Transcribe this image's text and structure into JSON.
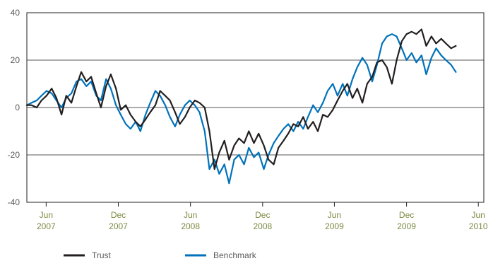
{
  "chart_data": {
    "type": "line",
    "title": "",
    "xlabel": "",
    "ylabel": "",
    "x_range": [
      "2007-04-13",
      "2010-06-15"
    ],
    "ylim": [
      -40,
      40
    ],
    "y_ticks": [
      40,
      20,
      0,
      -20,
      -40
    ],
    "x_ticks": [
      {
        "date": "2007-06-01",
        "month": "Jun",
        "year": "2007"
      },
      {
        "date": "2007-12-01",
        "month": "Dec",
        "year": "2007"
      },
      {
        "date": "2008-06-01",
        "month": "Jun",
        "year": "2008"
      },
      {
        "date": "2008-12-01",
        "month": "Dec",
        "year": "2008"
      },
      {
        "date": "2009-06-01",
        "month": "Jun",
        "year": "2009"
      },
      {
        "date": "2009-12-01",
        "month": "Dec",
        "year": "2009"
      },
      {
        "date": "2010-06-01",
        "month": "Jun",
        "year": "2010"
      }
    ],
    "grid": "horizontal",
    "legend_position": "bottom-left",
    "series": [
      {
        "name": "Trust",
        "color": "#231f20",
        "points": [
          [
            "2007-04-13",
            1
          ],
          [
            "2007-04-25",
            1
          ],
          [
            "2007-05-08",
            0
          ],
          [
            "2007-05-20",
            3
          ],
          [
            "2007-06-02",
            5
          ],
          [
            "2007-06-15",
            8
          ],
          [
            "2007-06-27",
            4
          ],
          [
            "2007-07-10",
            -3
          ],
          [
            "2007-07-22",
            5
          ],
          [
            "2007-08-04",
            2
          ],
          [
            "2007-08-17",
            9
          ],
          [
            "2007-08-29",
            15
          ],
          [
            "2007-09-11",
            11
          ],
          [
            "2007-09-23",
            13
          ],
          [
            "2007-10-06",
            6
          ],
          [
            "2007-10-18",
            0
          ],
          [
            "2007-10-31",
            9
          ],
          [
            "2007-11-12",
            14
          ],
          [
            "2007-11-25",
            8
          ],
          [
            "2007-12-07",
            -1
          ],
          [
            "2007-12-20",
            1
          ],
          [
            "2008-01-01",
            -3
          ],
          [
            "2008-01-14",
            -6
          ],
          [
            "2008-01-26",
            -8
          ],
          [
            "2008-02-08",
            -5
          ],
          [
            "2008-02-20",
            -2
          ],
          [
            "2008-03-04",
            1
          ],
          [
            "2008-03-16",
            7
          ],
          [
            "2008-03-29",
            5
          ],
          [
            "2008-04-10",
            3
          ],
          [
            "2008-04-23",
            -2
          ],
          [
            "2008-05-05",
            -7
          ],
          [
            "2008-05-18",
            -4
          ],
          [
            "2008-05-30",
            0
          ],
          [
            "2008-06-12",
            3
          ],
          [
            "2008-06-24",
            2
          ],
          [
            "2008-07-07",
            0
          ],
          [
            "2008-07-19",
            -10
          ],
          [
            "2008-08-01",
            -26
          ],
          [
            "2008-08-13",
            -19
          ],
          [
            "2008-08-26",
            -14
          ],
          [
            "2008-09-07",
            -22
          ],
          [
            "2008-09-20",
            -16
          ],
          [
            "2008-10-02",
            -13
          ],
          [
            "2008-10-15",
            -15
          ],
          [
            "2008-10-27",
            -10
          ],
          [
            "2008-11-09",
            -15
          ],
          [
            "2008-11-21",
            -11
          ],
          [
            "2008-12-04",
            -16
          ],
          [
            "2008-12-16",
            -22
          ],
          [
            "2008-12-29",
            -24
          ],
          [
            "2009-01-10",
            -17
          ],
          [
            "2009-01-23",
            -14
          ],
          [
            "2009-02-04",
            -11
          ],
          [
            "2009-02-17",
            -7
          ],
          [
            "2009-03-01",
            -8
          ],
          [
            "2009-03-14",
            -4
          ],
          [
            "2009-03-26",
            -9
          ],
          [
            "2009-04-08",
            -6
          ],
          [
            "2009-04-20",
            -10
          ],
          [
            "2009-05-03",
            -3
          ],
          [
            "2009-05-15",
            -4
          ],
          [
            "2009-05-28",
            -1
          ],
          [
            "2009-06-09",
            3
          ],
          [
            "2009-06-22",
            7
          ],
          [
            "2009-07-04",
            10
          ],
          [
            "2009-07-17",
            4
          ],
          [
            "2009-07-29",
            8
          ],
          [
            "2009-08-11",
            2
          ],
          [
            "2009-08-23",
            10
          ],
          [
            "2009-09-05",
            13
          ],
          [
            "2009-09-17",
            19
          ],
          [
            "2009-09-30",
            20
          ],
          [
            "2009-10-12",
            17
          ],
          [
            "2009-10-25",
            10
          ],
          [
            "2009-11-06",
            20
          ],
          [
            "2009-11-19",
            28
          ],
          [
            "2009-12-01",
            31
          ],
          [
            "2009-12-14",
            32
          ],
          [
            "2009-12-26",
            31
          ],
          [
            "2010-01-08",
            33
          ],
          [
            "2010-01-20",
            26
          ],
          [
            "2010-02-02",
            30
          ],
          [
            "2010-02-14",
            27
          ],
          [
            "2010-02-27",
            29
          ],
          [
            "2010-03-11",
            27
          ],
          [
            "2010-03-24",
            25
          ],
          [
            "2010-04-05",
            26
          ]
        ]
      },
      {
        "name": "Benchmark",
        "color": "#0072bc",
        "points": [
          [
            "2007-04-13",
            1
          ],
          [
            "2007-04-25",
            2
          ],
          [
            "2007-05-08",
            3
          ],
          [
            "2007-05-20",
            5
          ],
          [
            "2007-06-02",
            7
          ],
          [
            "2007-06-15",
            6
          ],
          [
            "2007-06-27",
            3
          ],
          [
            "2007-07-10",
            0
          ],
          [
            "2007-07-22",
            4
          ],
          [
            "2007-08-04",
            6
          ],
          [
            "2007-08-17",
            11
          ],
          [
            "2007-08-29",
            12
          ],
          [
            "2007-09-11",
            9
          ],
          [
            "2007-09-23",
            11
          ],
          [
            "2007-10-06",
            5
          ],
          [
            "2007-10-18",
            3
          ],
          [
            "2007-10-31",
            12
          ],
          [
            "2007-11-12",
            8
          ],
          [
            "2007-11-25",
            1
          ],
          [
            "2007-12-07",
            -3
          ],
          [
            "2007-12-20",
            -7
          ],
          [
            "2008-01-01",
            -9
          ],
          [
            "2008-01-14",
            -6
          ],
          [
            "2008-01-26",
            -10
          ],
          [
            "2008-02-08",
            -3
          ],
          [
            "2008-02-20",
            2
          ],
          [
            "2008-03-04",
            7
          ],
          [
            "2008-03-16",
            5
          ],
          [
            "2008-03-29",
            1
          ],
          [
            "2008-04-10",
            -4
          ],
          [
            "2008-04-23",
            -8
          ],
          [
            "2008-05-05",
            -3
          ],
          [
            "2008-05-18",
            1
          ],
          [
            "2008-05-30",
            3
          ],
          [
            "2008-06-12",
            1
          ],
          [
            "2008-06-24",
            -2
          ],
          [
            "2008-07-07",
            -10
          ],
          [
            "2008-07-19",
            -26
          ],
          [
            "2008-08-01",
            -22
          ],
          [
            "2008-08-13",
            -28
          ],
          [
            "2008-08-26",
            -24
          ],
          [
            "2008-09-07",
            -32
          ],
          [
            "2008-09-20",
            -22
          ],
          [
            "2008-10-02",
            -20
          ],
          [
            "2008-10-15",
            -24
          ],
          [
            "2008-10-27",
            -17
          ],
          [
            "2008-11-09",
            -21
          ],
          [
            "2008-11-21",
            -19
          ],
          [
            "2008-12-04",
            -26
          ],
          [
            "2008-12-16",
            -20
          ],
          [
            "2008-12-29",
            -15
          ],
          [
            "2009-01-10",
            -12
          ],
          [
            "2009-01-23",
            -9
          ],
          [
            "2009-02-04",
            -7
          ],
          [
            "2009-02-17",
            -10
          ],
          [
            "2009-03-01",
            -6
          ],
          [
            "2009-03-14",
            -9
          ],
          [
            "2009-03-26",
            -4
          ],
          [
            "2009-04-08",
            1
          ],
          [
            "2009-04-20",
            -2
          ],
          [
            "2009-05-03",
            2
          ],
          [
            "2009-05-15",
            7
          ],
          [
            "2009-05-28",
            10
          ],
          [
            "2009-06-09",
            5
          ],
          [
            "2009-06-22",
            10
          ],
          [
            "2009-07-04",
            5
          ],
          [
            "2009-07-17",
            12
          ],
          [
            "2009-07-29",
            17
          ],
          [
            "2009-08-11",
            21
          ],
          [
            "2009-08-23",
            18
          ],
          [
            "2009-09-05",
            11
          ],
          [
            "2009-09-17",
            18
          ],
          [
            "2009-09-30",
            27
          ],
          [
            "2009-10-12",
            30
          ],
          [
            "2009-10-25",
            31
          ],
          [
            "2009-11-06",
            30
          ],
          [
            "2009-11-19",
            25
          ],
          [
            "2009-12-01",
            20
          ],
          [
            "2009-12-14",
            23
          ],
          [
            "2009-12-26",
            19
          ],
          [
            "2010-01-08",
            22
          ],
          [
            "2010-01-20",
            14
          ],
          [
            "2010-02-02",
            21
          ],
          [
            "2010-02-14",
            25
          ],
          [
            "2010-02-27",
            22
          ],
          [
            "2010-03-11",
            20
          ],
          [
            "2010-03-24",
            18
          ],
          [
            "2010-04-05",
            15
          ]
        ]
      }
    ]
  }
}
